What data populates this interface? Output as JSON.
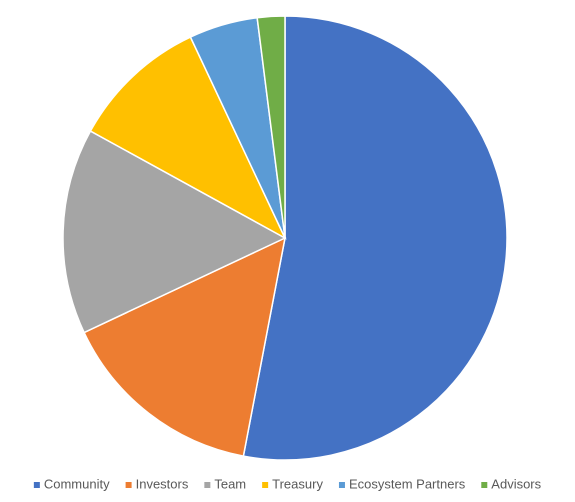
{
  "chart_data": {
    "type": "pie",
    "categories": [
      "Community",
      "Investors",
      "Team",
      "Treasury",
      "Ecosystem Partners",
      "Advisors"
    ],
    "values": [
      53,
      15,
      15,
      10,
      5,
      2
    ],
    "colors": [
      "#4472c4",
      "#ed7d31",
      "#a5a5a5",
      "#ffc000",
      "#5b9bd5",
      "#70ad47"
    ],
    "legend": "bottom"
  }
}
